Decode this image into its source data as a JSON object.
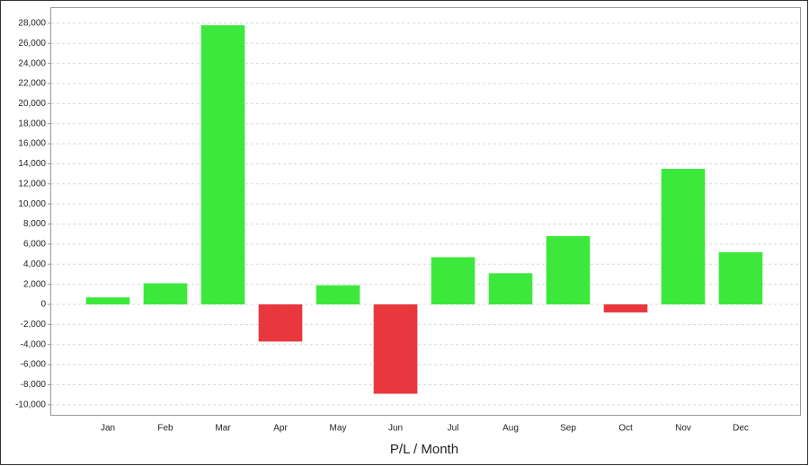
{
  "chart_data": {
    "type": "bar",
    "x_label": "P/L / Month",
    "categories": [
      "Jan",
      "Feb",
      "Mar",
      "Apr",
      "May",
      "Jun",
      "Jul",
      "Aug",
      "Sep",
      "Oct",
      "Nov",
      "Dec"
    ],
    "values": [
      700,
      2100,
      27800,
      -3700,
      1900,
      -8900,
      4700,
      3100,
      6800,
      -800,
      13500,
      5200
    ],
    "positive_color": "#3de83d",
    "negative_color": "#e8383d",
    "ylim": [
      -11000,
      29600
    ],
    "yticks": [
      {
        "value": -10000,
        "label": "-10,000"
      },
      {
        "value": -8000,
        "label": "-8,000"
      },
      {
        "value": -6000,
        "label": "-6,000"
      },
      {
        "value": -4000,
        "label": "-4,000"
      },
      {
        "value": -2000,
        "label": "-2,000"
      },
      0,
      {
        "value": 2000,
        "label": "2,000"
      },
      {
        "value": 4000,
        "label": "4,000"
      },
      {
        "value": 6000,
        "label": "6,000"
      },
      {
        "value": 8000,
        "label": "8,000"
      },
      {
        "value": 10000,
        "label": "10,000"
      },
      {
        "value": 12000,
        "label": "12,000"
      },
      {
        "value": 14000,
        "label": "14,000"
      },
      {
        "value": 16000,
        "label": "16,000"
      },
      {
        "value": 18000,
        "label": "18,000"
      },
      {
        "value": 20000,
        "label": "20,000"
      },
      {
        "value": 22000,
        "label": "22,000"
      },
      {
        "value": 24000,
        "label": "24,000"
      },
      {
        "value": 26000,
        "label": "26,000"
      },
      {
        "value": 28000,
        "label": "28,000"
      }
    ],
    "grid": true
  }
}
